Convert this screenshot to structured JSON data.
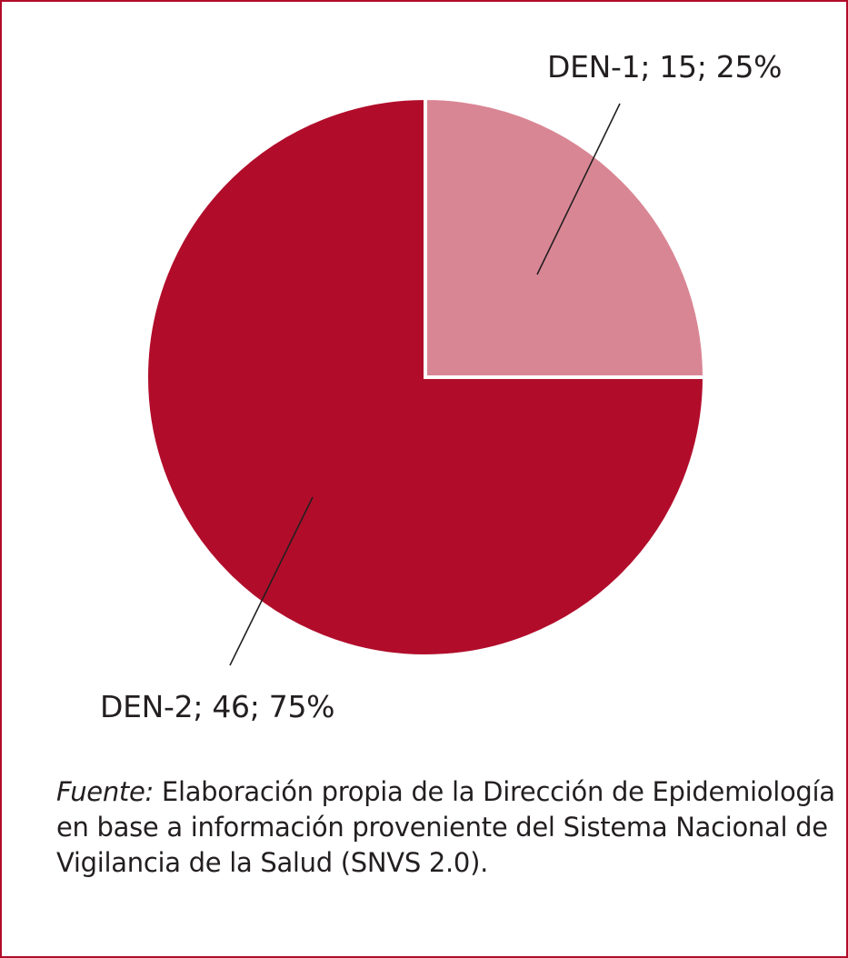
{
  "chart_data": {
    "type": "pie",
    "slices": [
      {
        "name": "DEN-1",
        "value": 15,
        "percent": 25,
        "label": "DEN-1; 15; 25%",
        "color": "#D98694"
      },
      {
        "name": "DEN-2",
        "value": 46,
        "percent": 75,
        "label": "DEN-2; 46; 75%",
        "color": "#B10D2B"
      }
    ],
    "start_angle": "12 o'clock",
    "direction": "clockwise"
  },
  "source": {
    "prefix": "Fuente:",
    "text": " Elaboración propia de la Dirección de Epidemiología en base a información proveniente del Sistema Nacional de Vigilancia de la Salud (SNVS 2.0)."
  },
  "border_color": "#B10D2B"
}
